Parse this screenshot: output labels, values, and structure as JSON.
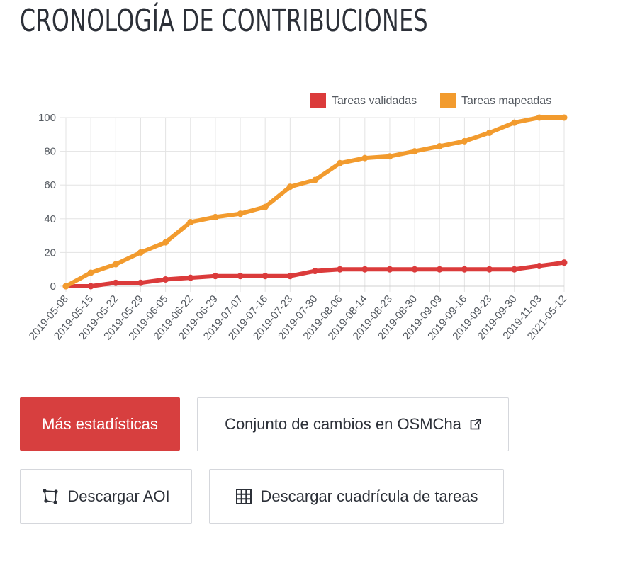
{
  "page": {
    "title": "CRONOLOGÍA DE CONTRIBUCIONES"
  },
  "buttons": {
    "more_stats": "Más estadísticas",
    "osmcha": "Conjunto de cambios en OSMCha",
    "download_aoi": "Descargar AOI",
    "download_grid": "Descargar cuadrícula de tareas"
  },
  "colors": {
    "validated": "#db3b3b",
    "mapped": "#f29b2e",
    "primary": "#d73f3f"
  },
  "icons": {
    "external": "external-link-icon",
    "aoi": "polygon-aoi-icon",
    "grid": "grid-icon"
  },
  "chart_data": {
    "type": "line",
    "categories": [
      "2019-05-08",
      "2019-05-15",
      "2019-05-22",
      "2019-05-29",
      "2019-06-05",
      "2019-06-22",
      "2019-06-29",
      "2019-07-07",
      "2019-07-16",
      "2019-07-23",
      "2019-07-30",
      "2019-08-06",
      "2019-08-14",
      "2019-08-23",
      "2019-08-30",
      "2019-09-09",
      "2019-09-16",
      "2019-09-23",
      "2019-09-30",
      "2019-11-03",
      "2021-05-12"
    ],
    "ylim": [
      0,
      100
    ],
    "yticks": [
      0,
      20,
      40,
      60,
      80,
      100
    ],
    "legend_position": "top-right",
    "grid": true,
    "series": [
      {
        "name": "Tareas validadas",
        "values": [
          0,
          0,
          2,
          2,
          4,
          5,
          6,
          6,
          6,
          6,
          9,
          10,
          10,
          10,
          10,
          10,
          10,
          10,
          10,
          12,
          14
        ]
      },
      {
        "name": "Tareas mapeadas",
        "values": [
          0,
          8,
          13,
          20,
          26,
          38,
          41,
          43,
          47,
          59,
          63,
          73,
          76,
          77,
          80,
          83,
          86,
          91,
          97,
          100,
          100
        ]
      }
    ]
  }
}
